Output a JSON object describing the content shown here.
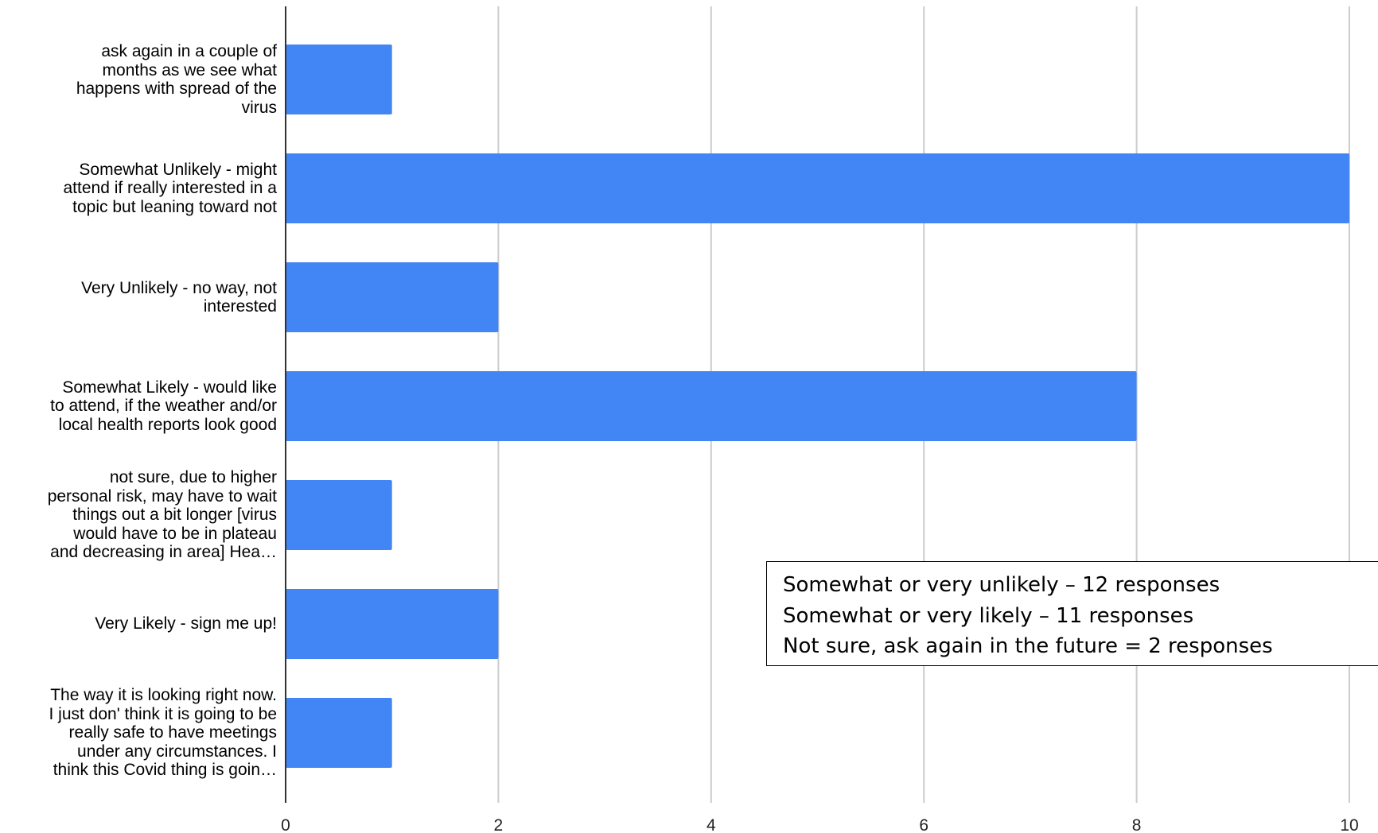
{
  "chart_data": {
    "type": "bar",
    "orientation": "horizontal",
    "categories": [
      "ask again in a couple of months as we see what happens with spread of the virus",
      "Somewhat Unlikely - might attend if really interested in a topic but leaning toward not",
      "Very Unlikely - no way, not interested",
      "Somewhat Likely - would like to attend, if the weather and/or local health reports look good",
      "not sure, due to higher personal risk, may have to wait things out a bit longer [virus would have to be in plateau and decreasing in area] Hea…",
      "Very Likely - sign me up!",
      "The way it is looking right now. I just don' think it is going to be really safe to have meetings under any circumstances.  I think this Covid thing is goin…"
    ],
    "category_lines": [
      [
        "ask again in a couple of",
        "months as we see what",
        "happens with spread of the",
        "virus"
      ],
      [
        "Somewhat Unlikely - might",
        "attend if really interested in a",
        "topic but leaning toward not"
      ],
      [
        "Very Unlikely - no way, not",
        "interested"
      ],
      [
        "Somewhat Likely - would like",
        "to attend, if the weather and/or",
        "local health reports look good"
      ],
      [
        "not sure, due to higher",
        "personal risk, may have to wait",
        "things out a bit longer [virus",
        "would have to be in plateau",
        "and decreasing in area] Hea…"
      ],
      [
        "Very Likely - sign me up!"
      ],
      [
        "The way it is looking right now.",
        "I just don' think it is going to be",
        "really safe to have meetings",
        "under any circumstances.  I",
        "think this Covid thing is goin…"
      ]
    ],
    "values": [
      1,
      10,
      2,
      8,
      1,
      2,
      1
    ],
    "xlim": [
      0,
      10
    ],
    "xticks": [
      0,
      2,
      4,
      6,
      8,
      10
    ],
    "grid": true,
    "bar_color": "#4285f4",
    "grid_color": "#cccccc",
    "title": "",
    "xlabel": "",
    "ylabel": ""
  },
  "annotation": {
    "lines": [
      "Somewhat or very unlikely – 12 responses",
      "Somewhat or very likely – 11 responses",
      "Not sure, ask again in the future = 2 responses"
    ]
  }
}
